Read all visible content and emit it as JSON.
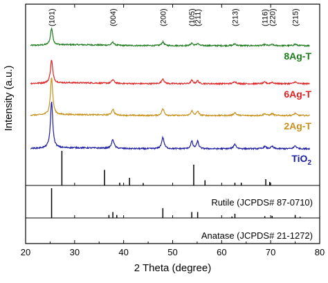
{
  "chart_data": {
    "type": "line",
    "xlabel": "2 Theta (degree)",
    "ylabel": "Intensity (a.u.)",
    "xlim": [
      20,
      80
    ],
    "xticks": [
      "20",
      "30",
      "40",
      "50",
      "60",
      "70",
      "80"
    ],
    "yticks": "none",
    "grid": false,
    "legend": "labels at right of each curve",
    "peak_labels": [
      {
        "x": 25.3,
        "text": "(101)"
      },
      {
        "x": 37.8,
        "text": "(004)"
      },
      {
        "x": 48.0,
        "text": "(200)"
      },
      {
        "x": 53.9,
        "text": "(105)"
      },
      {
        "x": 55.1,
        "text": "(211)"
      },
      {
        "x": 62.7,
        "text": "(213)"
      },
      {
        "x": 68.8,
        "text": "(116)"
      },
      {
        "x": 70.3,
        "text": "(220)"
      },
      {
        "x": 75.0,
        "text": "(215)"
      }
    ],
    "series": [
      {
        "name": "8Ag-T",
        "color": "#1a7a1a",
        "peak_heights": [
          0.45,
          0.08,
          0.1,
          0.07,
          0.06,
          0.05,
          0.03,
          0.03,
          0.04
        ]
      },
      {
        "name": "6Ag-T",
        "color": "#e02020",
        "peak_heights": [
          0.62,
          0.1,
          0.13,
          0.09,
          0.08,
          0.06,
          0.04,
          0.04,
          0.05
        ]
      },
      {
        "name": "2Ag-T",
        "color": "#c8901a",
        "peak_heights": [
          1.0,
          0.16,
          0.18,
          0.13,
          0.12,
          0.08,
          0.05,
          0.05,
          0.06
        ]
      },
      {
        "name_main": "TiO",
        "name_sub": "2",
        "color": "#1a1aa0",
        "peak_heights": [
          1.25,
          0.24,
          0.3,
          0.2,
          0.2,
          0.12,
          0.06,
          0.06,
          0.08
        ]
      }
    ],
    "references": [
      {
        "name": "Rutile (JCPDS# 87-0710)",
        "lines": [
          {
            "x": 27.4,
            "h": 1.0
          },
          {
            "x": 36.1,
            "h": 0.45
          },
          {
            "x": 39.2,
            "h": 0.08
          },
          {
            "x": 41.2,
            "h": 0.22
          },
          {
            "x": 44.0,
            "h": 0.07
          },
          {
            "x": 54.3,
            "h": 0.6
          },
          {
            "x": 56.6,
            "h": 0.15
          },
          {
            "x": 62.7,
            "h": 0.08
          },
          {
            "x": 64.0,
            "h": 0.08
          },
          {
            "x": 69.0,
            "h": 0.18
          },
          {
            "x": 69.8,
            "h": 0.1
          }
        ]
      },
      {
        "name": "Anatase (JCPDS# 21-1272)",
        "lines": [
          {
            "x": 25.3,
            "h": 1.0
          },
          {
            "x": 37.0,
            "h": 0.1
          },
          {
            "x": 37.8,
            "h": 0.2
          },
          {
            "x": 38.6,
            "h": 0.1
          },
          {
            "x": 48.0,
            "h": 0.33
          },
          {
            "x": 53.9,
            "h": 0.2
          },
          {
            "x": 55.1,
            "h": 0.2
          },
          {
            "x": 62.1,
            "h": 0.05
          },
          {
            "x": 62.7,
            "h": 0.14
          },
          {
            "x": 68.8,
            "h": 0.06
          },
          {
            "x": 70.3,
            "h": 0.07
          },
          {
            "x": 75.0,
            "h": 0.1
          },
          {
            "x": 76.0,
            "h": 0.04
          }
        ]
      }
    ]
  }
}
